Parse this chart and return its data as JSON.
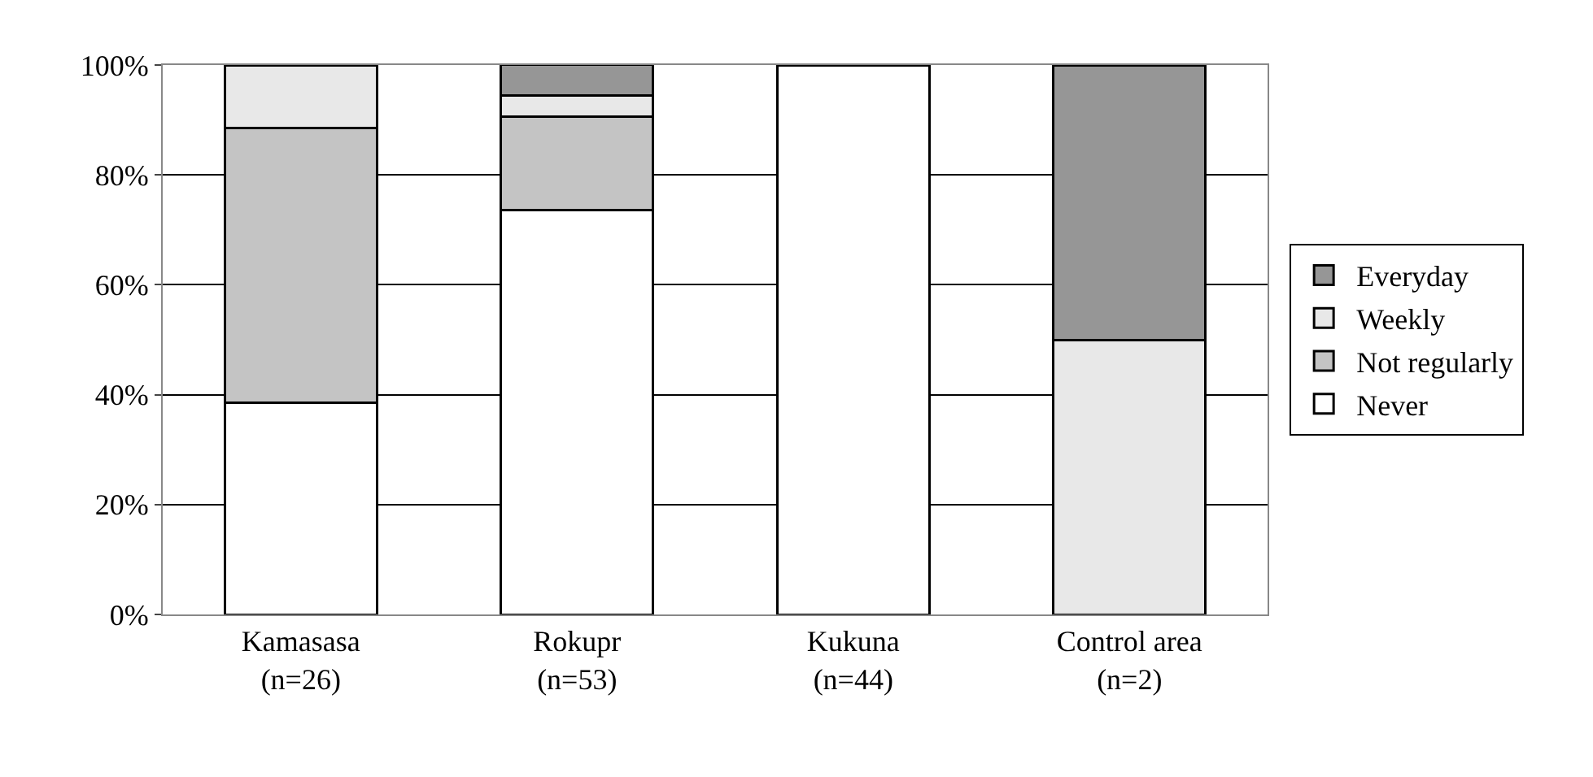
{
  "chart_data": {
    "type": "bar",
    "stacked": true,
    "categories": [
      "Kamasasa\n(n=26)",
      "Rokupr\n(n=53)",
      "Kukuna\n(n=44)",
      "Control area\n(n=2)"
    ],
    "series": [
      {
        "name": "Never",
        "color": "#ffffff",
        "values": [
          38.5,
          73.6,
          100,
          null
        ]
      },
      {
        "name": "Not regularly",
        "color": "#c4c4c4",
        "values": [
          50,
          17.0,
          null,
          null
        ]
      },
      {
        "name": "Weekly",
        "color": "#e8e8e8",
        "values": [
          11.5,
          3.8,
          null,
          50
        ]
      },
      {
        "name": "Everyday",
        "color": "#969696",
        "values": [
          null,
          5.7,
          null,
          50
        ]
      }
    ],
    "ylim": [
      0,
      100
    ],
    "yticks": [
      {
        "value": 0,
        "label": "0%"
      },
      {
        "value": 20,
        "label": "20%"
      },
      {
        "value": 40,
        "label": "40%"
      },
      {
        "value": 60,
        "label": "60%"
      },
      {
        "value": 80,
        "label": "80%"
      },
      {
        "value": 100,
        "label": "100%"
      }
    ],
    "grid": "y",
    "legend": "right"
  }
}
